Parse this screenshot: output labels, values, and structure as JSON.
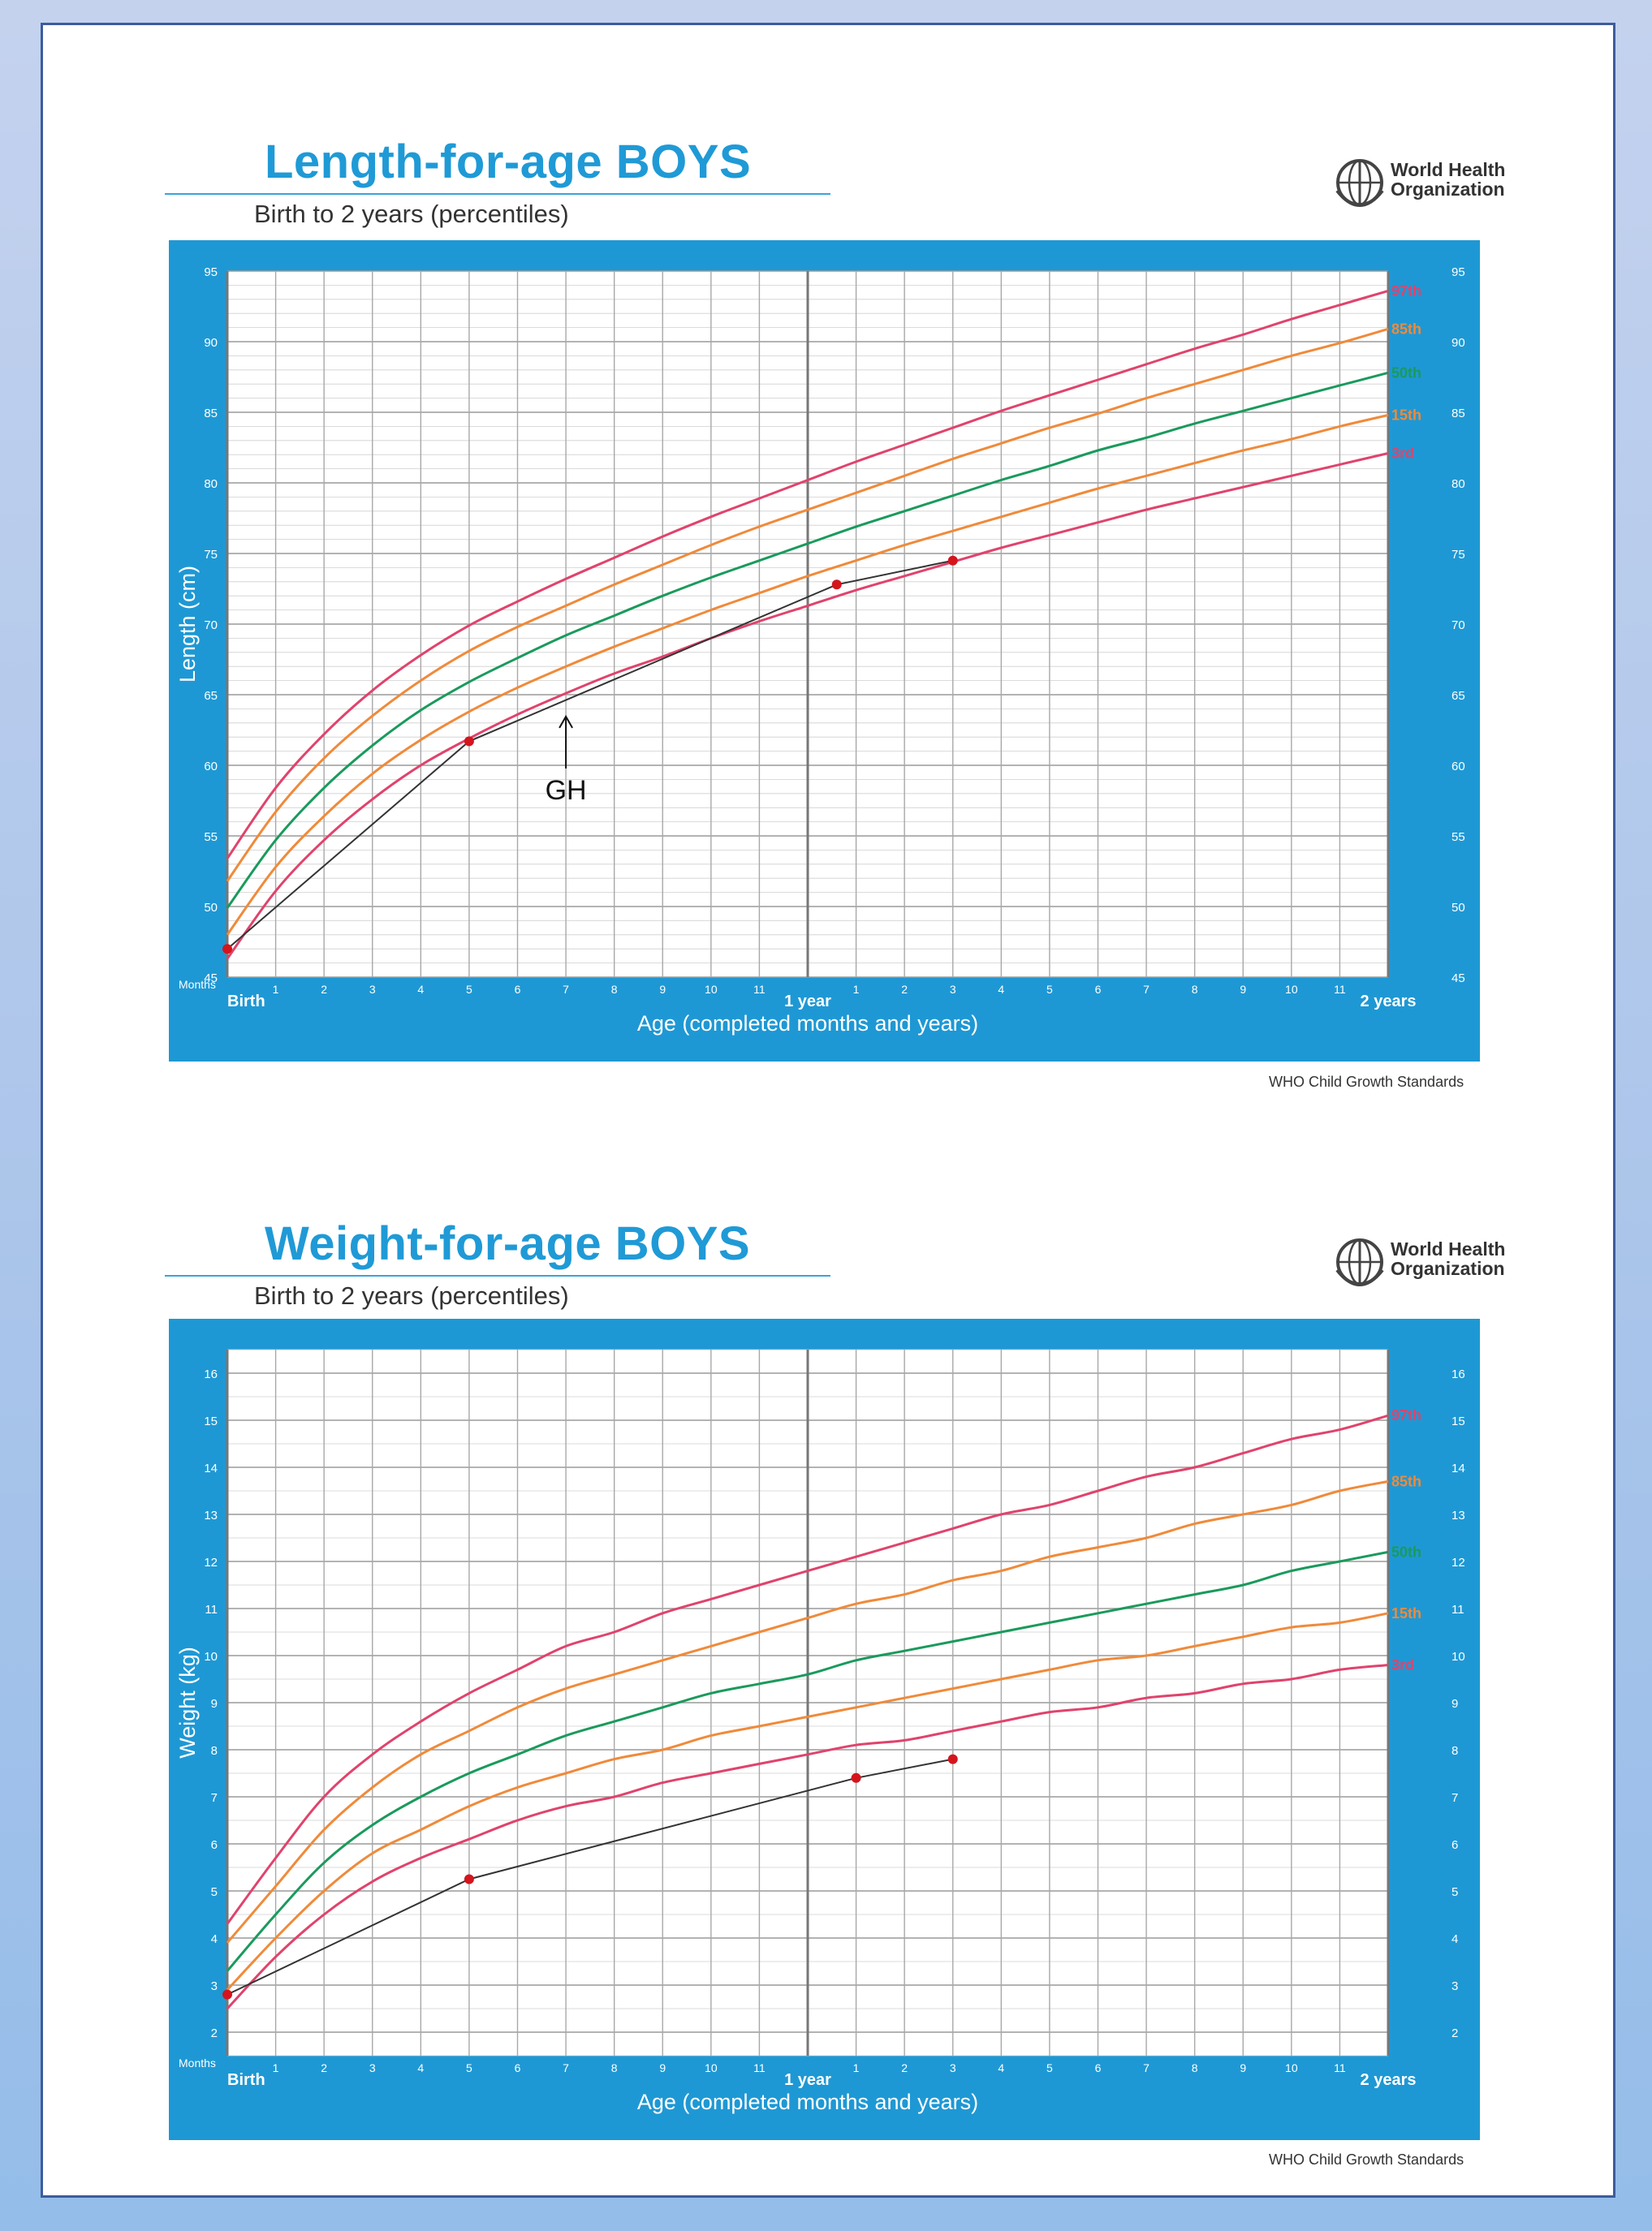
{
  "organization": {
    "line1": "World Health",
    "line2": "Organization"
  },
  "footer": "WHO Child Growth Standards",
  "icons": {
    "logo": "who-emblem-icon"
  },
  "chart_data": [
    {
      "type": "line",
      "title": "Length-for-age BOYS",
      "subtitle": "Birth to 2 years (percentiles)",
      "xlabel": "Age (completed months and years)",
      "ylabel": "Length (cm)",
      "unit_label": "Months",
      "xlim": [
        0,
        24
      ],
      "ylim": [
        45,
        95
      ],
      "y_ticks": [
        45,
        50,
        55,
        60,
        65,
        70,
        75,
        80,
        85,
        90,
        95
      ],
      "x_tick_labels": [
        "Birth",
        "1",
        "2",
        "3",
        "4",
        "5",
        "6",
        "7",
        "8",
        "9",
        "10",
        "11",
        "1 year",
        "1",
        "2",
        "3",
        "4",
        "5",
        "6",
        "7",
        "8",
        "9",
        "10",
        "11",
        "2 years"
      ],
      "grid": true,
      "x": [
        0,
        1,
        2,
        3,
        4,
        5,
        6,
        7,
        8,
        9,
        10,
        11,
        12,
        13,
        14,
        15,
        16,
        17,
        18,
        19,
        20,
        21,
        22,
        23,
        24
      ],
      "series": [
        {
          "name": "97th",
          "color": "#e0436c",
          "values": [
            53.4,
            58.4,
            62.2,
            65.3,
            67.8,
            69.9,
            71.6,
            73.2,
            74.7,
            76.2,
            77.6,
            78.9,
            80.2,
            81.5,
            82.7,
            83.9,
            85.1,
            86.2,
            87.3,
            88.4,
            89.5,
            90.5,
            91.6,
            92.6,
            93.6
          ]
        },
        {
          "name": "85th",
          "color": "#f08a3a",
          "values": [
            51.8,
            56.7,
            60.5,
            63.5,
            66.0,
            68.1,
            69.8,
            71.3,
            72.8,
            74.2,
            75.6,
            76.9,
            78.1,
            79.3,
            80.5,
            81.7,
            82.8,
            83.9,
            84.9,
            86.0,
            87.0,
            88.0,
            89.0,
            89.9,
            90.9
          ]
        },
        {
          "name": "50th",
          "color": "#1a9a5c",
          "values": [
            49.9,
            54.7,
            58.4,
            61.4,
            63.9,
            65.9,
            67.6,
            69.2,
            70.6,
            72.0,
            73.3,
            74.5,
            75.7,
            76.9,
            78.0,
            79.1,
            80.2,
            81.2,
            82.3,
            83.2,
            84.2,
            85.1,
            86.0,
            86.9,
            87.8
          ]
        },
        {
          "name": "15th",
          "color": "#f08a3a",
          "values": [
            48.0,
            52.8,
            56.4,
            59.4,
            61.8,
            63.8,
            65.5,
            67.0,
            68.4,
            69.7,
            71.0,
            72.2,
            73.4,
            74.5,
            75.6,
            76.6,
            77.6,
            78.6,
            79.6,
            80.5,
            81.4,
            82.3,
            83.1,
            84.0,
            84.8
          ]
        },
        {
          "name": "3rd",
          "color": "#e0436c",
          "values": [
            46.3,
            51.1,
            54.7,
            57.6,
            60.0,
            61.9,
            63.6,
            65.1,
            66.5,
            67.7,
            69.0,
            70.2,
            71.3,
            72.4,
            73.4,
            74.4,
            75.4,
            76.3,
            77.2,
            78.1,
            78.9,
            79.7,
            80.5,
            81.3,
            82.1
          ]
        }
      ],
      "measurements": {
        "x": [
          0,
          5,
          12.6,
          15
        ],
        "y": [
          47,
          61.7,
          72.8,
          74.5
        ]
      },
      "annotations": [
        {
          "text": "GH",
          "x": 7,
          "y": 63.8
        }
      ]
    },
    {
      "type": "line",
      "title": "Weight-for-age BOYS",
      "subtitle": "Birth to 2 years (percentiles)",
      "xlabel": "Age (completed months and years)",
      "ylabel": "Weight (kg)",
      "unit_label": "Months",
      "xlim": [
        0,
        24
      ],
      "ylim": [
        1.5,
        16.5
      ],
      "y_ticks": [
        2,
        3,
        4,
        5,
        6,
        7,
        8,
        9,
        10,
        11,
        12,
        13,
        14,
        15,
        16
      ],
      "x_tick_labels": [
        "Birth",
        "1",
        "2",
        "3",
        "4",
        "5",
        "6",
        "7",
        "8",
        "9",
        "10",
        "11",
        "1 year",
        "1",
        "2",
        "3",
        "4",
        "5",
        "6",
        "7",
        "8",
        "9",
        "10",
        "11",
        "2 years"
      ],
      "grid": true,
      "x": [
        0,
        1,
        2,
        3,
        4,
        5,
        6,
        7,
        8,
        9,
        10,
        11,
        12,
        13,
        14,
        15,
        16,
        17,
        18,
        19,
        20,
        21,
        22,
        23,
        24
      ],
      "series": [
        {
          "name": "97th",
          "color": "#e0436c",
          "values": [
            4.3,
            5.7,
            7.0,
            7.9,
            8.6,
            9.2,
            9.7,
            10.2,
            10.5,
            10.9,
            11.2,
            11.5,
            11.8,
            12.1,
            12.4,
            12.7,
            13.0,
            13.2,
            13.5,
            13.8,
            14.0,
            14.3,
            14.6,
            14.8,
            15.1
          ]
        },
        {
          "name": "85th",
          "color": "#f08a3a",
          "values": [
            3.9,
            5.1,
            6.3,
            7.2,
            7.9,
            8.4,
            8.9,
            9.3,
            9.6,
            9.9,
            10.2,
            10.5,
            10.8,
            11.1,
            11.3,
            11.6,
            11.8,
            12.1,
            12.3,
            12.5,
            12.8,
            13.0,
            13.2,
            13.5,
            13.7
          ]
        },
        {
          "name": "50th",
          "color": "#1a9a5c",
          "values": [
            3.3,
            4.5,
            5.6,
            6.4,
            7.0,
            7.5,
            7.9,
            8.3,
            8.6,
            8.9,
            9.2,
            9.4,
            9.6,
            9.9,
            10.1,
            10.3,
            10.5,
            10.7,
            10.9,
            11.1,
            11.3,
            11.5,
            11.8,
            12.0,
            12.2
          ]
        },
        {
          "name": "15th",
          "color": "#f08a3a",
          "values": [
            2.9,
            4.0,
            5.0,
            5.8,
            6.3,
            6.8,
            7.2,
            7.5,
            7.8,
            8.0,
            8.3,
            8.5,
            8.7,
            8.9,
            9.1,
            9.3,
            9.5,
            9.7,
            9.9,
            10.0,
            10.2,
            10.4,
            10.6,
            10.7,
            10.9
          ]
        },
        {
          "name": "3rd",
          "color": "#e0436c",
          "values": [
            2.5,
            3.6,
            4.5,
            5.2,
            5.7,
            6.1,
            6.5,
            6.8,
            7.0,
            7.3,
            7.5,
            7.7,
            7.9,
            8.1,
            8.2,
            8.4,
            8.6,
            8.8,
            8.9,
            9.1,
            9.2,
            9.4,
            9.5,
            9.7,
            9.8
          ]
        }
      ],
      "measurements": {
        "x": [
          0,
          5,
          13,
          15
        ],
        "y": [
          2.8,
          5.25,
          7.4,
          7.8
        ]
      }
    }
  ]
}
